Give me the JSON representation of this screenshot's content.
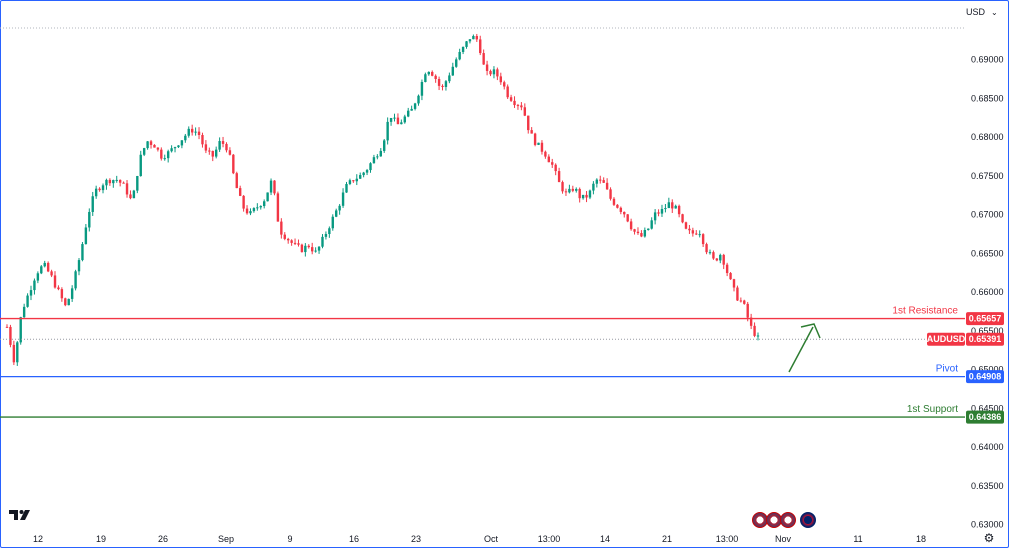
{
  "header": {
    "currency_label": "USD",
    "currency_chevron_icon": "chevron-down-icon"
  },
  "colors": {
    "up": "#089981",
    "down": "#f23645",
    "resistance": "#f23645",
    "pivot": "#2962ff",
    "support": "#2e7d32",
    "current_price": "#f23645",
    "arrow": "#2e7d32"
  },
  "chart_data": {
    "type": "candlestick",
    "symbol": "AUDUSD",
    "y_axis": {
      "side": "right",
      "ticks": [
        0.69,
        0.685,
        0.68,
        0.675,
        0.67,
        0.665,
        0.66,
        0.655,
        0.65,
        0.645,
        0.64,
        0.635,
        0.63
      ],
      "tick_labels": [
        "0.69000",
        "0.68500",
        "0.68000",
        "0.67500",
        "0.67000",
        "0.66500",
        "0.66000",
        "0.65500",
        "0.65000",
        "0.64500",
        "0.64000",
        "0.63500",
        "0.63000"
      ],
      "ylim": [
        0.63,
        0.695
      ]
    },
    "x_axis": {
      "tick_labels": [
        "12",
        "19",
        "26",
        "Sep",
        "9",
        "16",
        "23",
        "Oct",
        "13:00",
        "14",
        "21",
        "13:00",
        "Nov",
        "11",
        "18"
      ]
    },
    "grid": false,
    "price_path": [
      0.6555,
      0.651,
      0.6575,
      0.66,
      0.6625,
      0.6635,
      0.662,
      0.66,
      0.658,
      0.661,
      0.665,
      0.67,
      0.673,
      0.674,
      0.6745,
      0.6745,
      0.6735,
      0.6715,
      0.677,
      0.6795,
      0.679,
      0.6775,
      0.678,
      0.679,
      0.68,
      0.681,
      0.6805,
      0.678,
      0.6775,
      0.6795,
      0.6785,
      0.674,
      0.671,
      0.67,
      0.671,
      0.672,
      0.6745,
      0.668,
      0.667,
      0.666,
      0.6655,
      0.666,
      0.665,
      0.667,
      0.669,
      0.671,
      0.6735,
      0.6745,
      0.675,
      0.676,
      0.6775,
      0.679,
      0.683,
      0.6815,
      0.6825,
      0.6835,
      0.686,
      0.689,
      0.688,
      0.686,
      0.688,
      0.69,
      0.6915,
      0.693,
      0.6925,
      0.688,
      0.6885,
      0.6875,
      0.6855,
      0.6845,
      0.684,
      0.6805,
      0.679,
      0.678,
      0.6765,
      0.674,
      0.6725,
      0.6735,
      0.672,
      0.6725,
      0.6745,
      0.674,
      0.672,
      0.671,
      0.67,
      0.668,
      0.667,
      0.668,
      0.67,
      0.6705,
      0.6715,
      0.6705,
      0.668,
      0.6675,
      0.668,
      0.6655,
      0.664,
      0.665,
      0.662,
      0.6595,
      0.6585,
      0.6555,
      0.654
    ],
    "horizontal_levels": [
      {
        "name": "1st Resistance",
        "value": 0.65657,
        "value_label": "0.65657",
        "color": "#f23645",
        "style": "solid"
      },
      {
        "name": "Pivot",
        "value": 0.64908,
        "value_label": "0.64908",
        "color": "#2962ff",
        "style": "solid"
      },
      {
        "name": "1st Support",
        "value": 0.64386,
        "value_label": "0.64386",
        "color": "#2e7d32",
        "style": "solid"
      }
    ],
    "current_price": {
      "symbol": "AUDUSD",
      "value": 0.65391,
      "value_label": "0.65391"
    },
    "annotations": [
      {
        "type": "arrow",
        "direction": "up",
        "color": "#2e7d32"
      }
    ]
  }
}
